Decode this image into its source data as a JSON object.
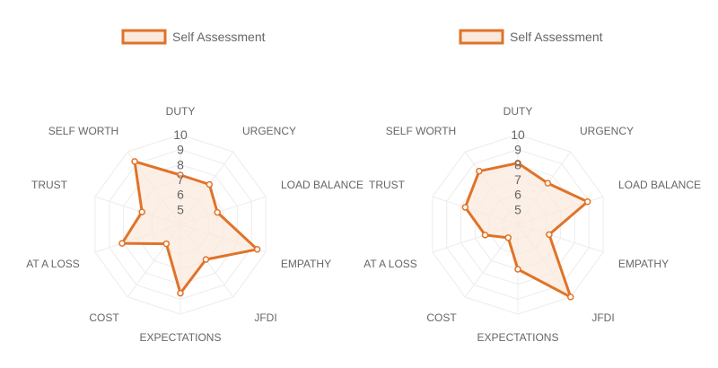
{
  "chart_data": [
    {
      "type": "radar",
      "legend": "Self Assessment",
      "series_color": "#e07328",
      "series_fill": "#fbe9de",
      "labels": [
        "DUTY",
        "URGENCY",
        "LOAD BALANCE",
        "EMPATHY",
        "JFDI",
        "EXPECTATIONS",
        "COST",
        "AT A LOSS",
        "TRUST",
        "SELF WORTH"
      ],
      "tick_labels": [
        "10",
        "9",
        "8",
        "7",
        "6",
        "5"
      ],
      "range": [
        4,
        10
      ],
      "grid": true,
      "values": [
        7.3,
        7.3,
        6.6,
        9.4,
        6.9,
        8.6,
        5.6,
        8.1,
        6.7,
        9.2
      ]
    },
    {
      "type": "radar",
      "legend": "Self Assessment",
      "series_color": "#e07328",
      "series_fill": "#fbe9de",
      "labels": [
        "DUTY",
        "URGENCY",
        "LOAD BALANCE",
        "EMPATHY",
        "JFDI",
        "EXPECTATIONS",
        "COST",
        "AT A LOSS",
        "TRUST",
        "SELF WORTH"
      ],
      "tick_labels": [
        "10",
        "9",
        "8",
        "7",
        "6",
        "5"
      ],
      "range": [
        4,
        10
      ],
      "grid": true,
      "values": [
        8.1,
        7.4,
        8.9,
        6.2,
        10.0,
        7.0,
        5.1,
        6.3,
        7.7,
        8.4
      ]
    }
  ]
}
